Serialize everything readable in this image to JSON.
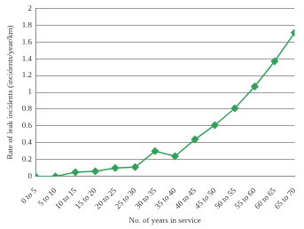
{
  "chart_data": {
    "type": "line",
    "x_label": "No. of years in service",
    "y_label": "Rate of leak incidents (incidents/year/km)",
    "categories": [
      "0 to 5",
      "5 to 10",
      "10 to 15",
      "15 to 20",
      "20 to 25",
      "25 to 30",
      "30 to 35",
      "35 to 40",
      "40 to 45",
      "45 to 50",
      "50 to 55",
      "55 to 60",
      "60 to 65",
      "65 to 70"
    ],
    "values": [
      0,
      0,
      0.05,
      0.06,
      0.1,
      0.11,
      0.3,
      0.24,
      0.44,
      0.61,
      0.81,
      1.07,
      1.37,
      1.71
    ],
    "color": "#33a05a",
    "marker": "diamond",
    "line_style": "solid",
    "ylim": [
      0,
      2
    ],
    "yticks": [
      0,
      0.2,
      0.4,
      0.6,
      0.8,
      1,
      1.2,
      1.4,
      1.6,
      1.8,
      2
    ],
    "grid": true
  }
}
